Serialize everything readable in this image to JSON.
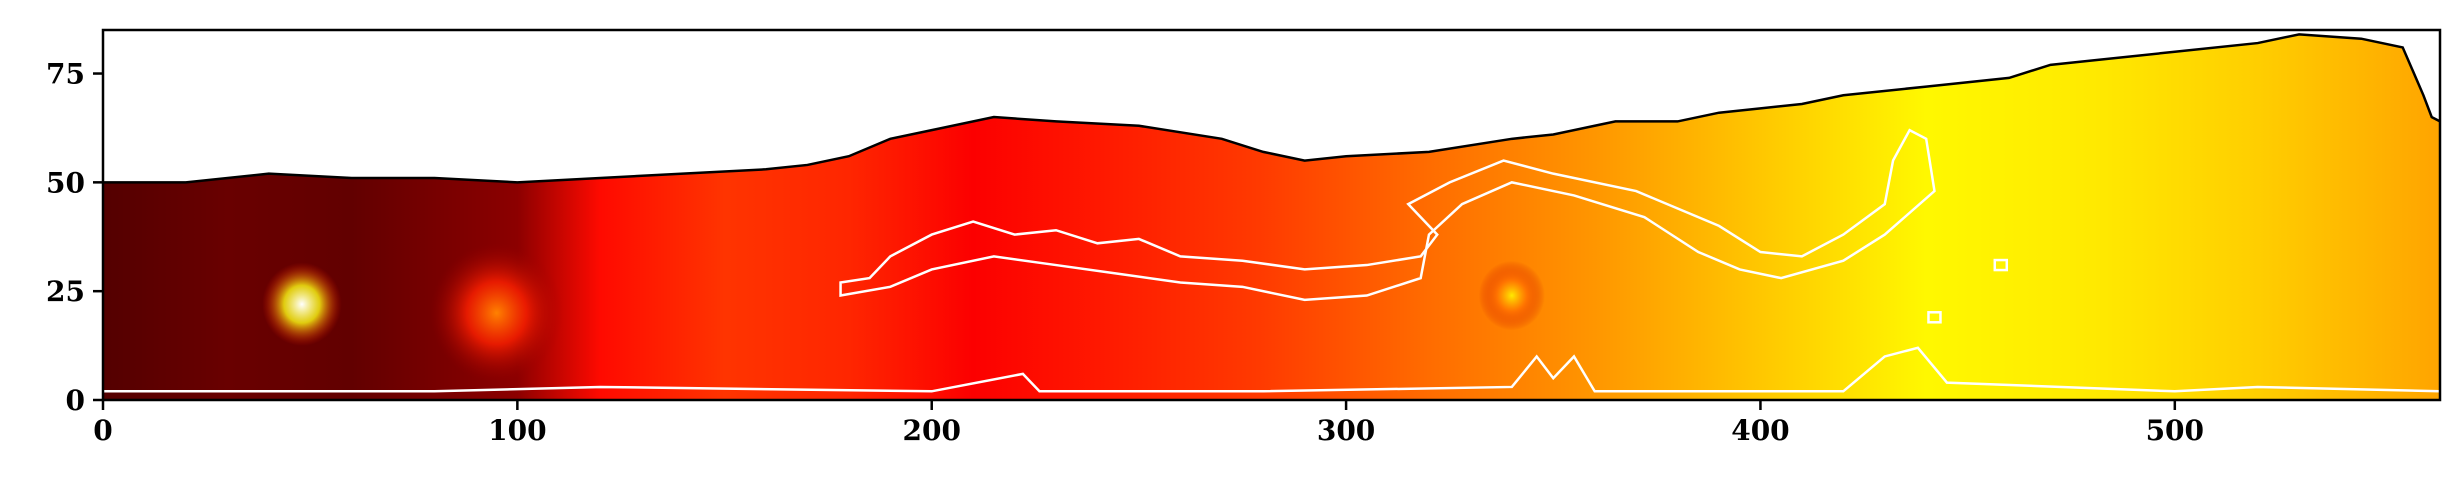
{
  "chart_data": {
    "type": "heatmap",
    "colormap": "hot",
    "xlim": [
      0,
      564
    ],
    "ylim": [
      0,
      85
    ],
    "x_ticks": [
      {
        "value": 0,
        "label": "0"
      },
      {
        "value": 100,
        "label": "100"
      },
      {
        "value": 200,
        "label": "200"
      },
      {
        "value": 300,
        "label": "300"
      },
      {
        "value": 400,
        "label": "400"
      },
      {
        "value": 500,
        "label": "500"
      }
    ],
    "y_ticks": [
      {
        "value": 0,
        "label": "0"
      },
      {
        "value": 25,
        "label": "25"
      },
      {
        "value": 50,
        "label": "50"
      },
      {
        "value": 75,
        "label": "75"
      }
    ],
    "grid": false,
    "data_top_edge": [
      [
        0,
        50
      ],
      [
        20,
        50
      ],
      [
        40,
        52
      ],
      [
        60,
        51
      ],
      [
        80,
        51
      ],
      [
        100,
        50
      ],
      [
        120,
        51
      ],
      [
        140,
        52
      ],
      [
        160,
        53
      ],
      [
        170,
        54
      ],
      [
        180,
        56
      ],
      [
        190,
        60
      ],
      [
        200,
        62
      ],
      [
        215,
        65
      ],
      [
        230,
        64
      ],
      [
        250,
        63
      ],
      [
        270,
        60
      ],
      [
        280,
        57
      ],
      [
        290,
        55
      ],
      [
        300,
        56
      ],
      [
        320,
        57
      ],
      [
        340,
        60
      ],
      [
        350,
        61
      ],
      [
        360,
        63
      ],
      [
        365,
        64
      ],
      [
        380,
        64
      ],
      [
        390,
        66
      ],
      [
        400,
        67
      ],
      [
        410,
        68
      ],
      [
        420,
        70
      ],
      [
        440,
        72
      ],
      [
        460,
        74
      ],
      [
        470,
        77
      ],
      [
        480,
        78
      ],
      [
        500,
        80
      ],
      [
        520,
        82
      ],
      [
        530,
        84
      ],
      [
        545,
        83
      ],
      [
        555,
        81
      ],
      [
        560,
        70
      ],
      [
        562,
        65
      ],
      [
        564,
        64
      ]
    ],
    "intensity_profile": [
      [
        0,
        0.12
      ],
      [
        30,
        0.15
      ],
      [
        60,
        0.14
      ],
      [
        100,
        0.2
      ],
      [
        120,
        0.38
      ],
      [
        150,
        0.44
      ],
      [
        180,
        0.42
      ],
      [
        210,
        0.36
      ],
      [
        240,
        0.4
      ],
      [
        280,
        0.45
      ],
      [
        320,
        0.52
      ],
      [
        360,
        0.58
      ],
      [
        400,
        0.65
      ],
      [
        440,
        0.72
      ],
      [
        480,
        0.7
      ],
      [
        520,
        0.66
      ],
      [
        564,
        0.6
      ]
    ],
    "bright_spots": [
      {
        "x": 48,
        "y": 22,
        "intensity": 1.0,
        "radius": 6
      },
      {
        "x": 95,
        "y": 20,
        "intensity": 0.55,
        "radius": 10
      },
      {
        "x": 340,
        "y": 24,
        "intensity": 0.7,
        "radius": 5
      }
    ],
    "contours": [
      {
        "name": "filament",
        "color": "#ffffff",
        "points": [
          [
            178,
            27
          ],
          [
            185,
            28
          ],
          [
            190,
            33
          ],
          [
            200,
            38
          ],
          [
            210,
            41
          ],
          [
            220,
            38
          ],
          [
            230,
            39
          ],
          [
            240,
            36
          ],
          [
            250,
            37
          ],
          [
            260,
            33
          ],
          [
            275,
            32
          ],
          [
            290,
            30
          ],
          [
            305,
            31
          ],
          [
            318,
            33
          ],
          [
            322,
            38
          ],
          [
            315,
            45
          ],
          [
            325,
            50
          ],
          [
            338,
            55
          ],
          [
            350,
            52
          ],
          [
            370,
            48
          ],
          [
            390,
            40
          ],
          [
            400,
            34
          ],
          [
            410,
            33
          ],
          [
            420,
            38
          ],
          [
            430,
            45
          ],
          [
            432,
            55
          ],
          [
            436,
            62
          ],
          [
            440,
            60
          ],
          [
            442,
            48
          ],
          [
            430,
            38
          ],
          [
            420,
            32
          ],
          [
            405,
            28
          ],
          [
            395,
            30
          ],
          [
            385,
            34
          ],
          [
            372,
            42
          ],
          [
            355,
            47
          ],
          [
            340,
            50
          ],
          [
            328,
            45
          ],
          [
            320,
            38
          ],
          [
            318,
            28
          ],
          [
            305,
            24
          ],
          [
            290,
            23
          ],
          [
            275,
            26
          ],
          [
            260,
            27
          ],
          [
            245,
            29
          ],
          [
            230,
            31
          ],
          [
            215,
            33
          ],
          [
            200,
            30
          ],
          [
            190,
            26
          ],
          [
            178,
            24
          ]
        ]
      },
      {
        "name": "bottom-band",
        "color": "#ffffff",
        "points": [
          [
            0,
            2
          ],
          [
            80,
            2
          ],
          [
            120,
            3
          ],
          [
            200,
            2
          ],
          [
            222,
            6
          ],
          [
            226,
            2
          ],
          [
            280,
            2
          ],
          [
            340,
            3
          ],
          [
            346,
            10
          ],
          [
            350,
            5
          ],
          [
            355,
            10
          ],
          [
            360,
            2
          ],
          [
            420,
            2
          ],
          [
            430,
            10
          ],
          [
            438,
            12
          ],
          [
            445,
            4
          ],
          [
            500,
            2
          ],
          [
            520,
            3
          ],
          [
            564,
            2
          ]
        ]
      }
    ],
    "small_contour_blobs": [
      {
        "x": 458,
        "y": 31
      },
      {
        "x": 442,
        "y": 19
      }
    ]
  }
}
